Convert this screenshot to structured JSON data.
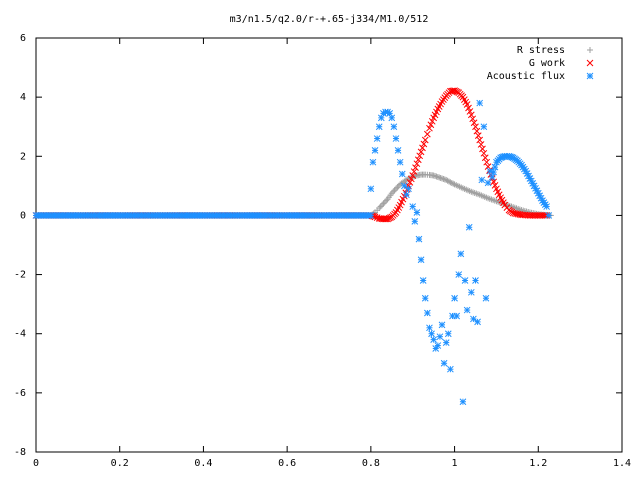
{
  "chart_data": {
    "type": "scatter",
    "title": "m3/n1.5/q2.0/r-+.65-j334/M1.0/512",
    "xlabel": "",
    "ylabel": "",
    "xlim": [
      0,
      1.4
    ],
    "ylim": [
      -8,
      6
    ],
    "x_ticks": [
      "0",
      "0.2",
      "0.4",
      "0.6",
      "0.8",
      "1",
      "1.2",
      "1.4"
    ],
    "y_ticks": [
      "-8",
      "-6",
      "-4",
      "-2",
      "0",
      "2",
      "4",
      "6"
    ],
    "grid": false,
    "legend_position": "top-right",
    "series": [
      {
        "name": "R stress",
        "marker": "plus",
        "color": "#a0a0a0",
        "points": [
          [
            0.0,
            0
          ],
          [
            0.1,
            0
          ],
          [
            0.2,
            0
          ],
          [
            0.3,
            0
          ],
          [
            0.4,
            0
          ],
          [
            0.5,
            0
          ],
          [
            0.6,
            0
          ],
          [
            0.7,
            0
          ],
          [
            0.8,
            0
          ],
          [
            0.81,
            0.1
          ],
          [
            0.82,
            0.25
          ],
          [
            0.83,
            0.4
          ],
          [
            0.84,
            0.55
          ],
          [
            0.85,
            0.75
          ],
          [
            0.86,
            0.9
          ],
          [
            0.87,
            1.05
          ],
          [
            0.88,
            1.15
          ],
          [
            0.89,
            1.25
          ],
          [
            0.9,
            1.3
          ],
          [
            0.91,
            1.35
          ],
          [
            0.92,
            1.38
          ],
          [
            0.93,
            1.38
          ],
          [
            0.94,
            1.37
          ],
          [
            0.95,
            1.35
          ],
          [
            0.96,
            1.3
          ],
          [
            0.97,
            1.25
          ],
          [
            0.98,
            1.2
          ],
          [
            0.99,
            1.12
          ],
          [
            1.0,
            1.05
          ],
          [
            1.02,
            0.92
          ],
          [
            1.04,
            0.8
          ],
          [
            1.06,
            0.7
          ],
          [
            1.08,
            0.58
          ],
          [
            1.1,
            0.48
          ],
          [
            1.12,
            0.38
          ],
          [
            1.14,
            0.28
          ],
          [
            1.16,
            0.18
          ],
          [
            1.18,
            0.1
          ],
          [
            1.2,
            0.04
          ],
          [
            1.22,
            0.01
          ],
          [
            1.23,
            0
          ]
        ]
      },
      {
        "name": "G work",
        "marker": "cross",
        "color": "#ff0000",
        "points": [
          [
            0.0,
            0
          ],
          [
            0.1,
            0
          ],
          [
            0.2,
            0
          ],
          [
            0.3,
            0
          ],
          [
            0.4,
            0
          ],
          [
            0.5,
            0
          ],
          [
            0.6,
            0
          ],
          [
            0.7,
            0
          ],
          [
            0.8,
            0
          ],
          [
            0.81,
            -0.05
          ],
          [
            0.82,
            -0.1
          ],
          [
            0.83,
            -0.12
          ],
          [
            0.84,
            -0.12
          ],
          [
            0.85,
            -0.05
          ],
          [
            0.86,
            0.1
          ],
          [
            0.87,
            0.35
          ],
          [
            0.88,
            0.65
          ],
          [
            0.89,
            1.0
          ],
          [
            0.9,
            1.35
          ],
          [
            0.91,
            1.75
          ],
          [
            0.92,
            2.15
          ],
          [
            0.93,
            2.55
          ],
          [
            0.94,
            2.95
          ],
          [
            0.95,
            3.3
          ],
          [
            0.96,
            3.6
          ],
          [
            0.97,
            3.85
          ],
          [
            0.98,
            4.05
          ],
          [
            0.99,
            4.2
          ],
          [
            1.0,
            4.22
          ],
          [
            1.01,
            4.15
          ],
          [
            1.02,
            4.0
          ],
          [
            1.03,
            3.75
          ],
          [
            1.04,
            3.4
          ],
          [
            1.05,
            3.0
          ],
          [
            1.06,
            2.55
          ],
          [
            1.07,
            2.1
          ],
          [
            1.08,
            1.65
          ],
          [
            1.09,
            1.25
          ],
          [
            1.1,
            0.9
          ],
          [
            1.11,
            0.6
          ],
          [
            1.12,
            0.35
          ],
          [
            1.13,
            0.18
          ],
          [
            1.14,
            0.08
          ],
          [
            1.16,
            0.02
          ],
          [
            1.18,
            0
          ],
          [
            1.2,
            0
          ],
          [
            1.22,
            0
          ]
        ]
      },
      {
        "name": "Acoustic flux",
        "marker": "star",
        "color": "#1e90ff",
        "points": [
          [
            0.0,
            0
          ],
          [
            0.05,
            0
          ],
          [
            0.1,
            0
          ],
          [
            0.15,
            0
          ],
          [
            0.2,
            0
          ],
          [
            0.25,
            0
          ],
          [
            0.3,
            0
          ],
          [
            0.35,
            0
          ],
          [
            0.4,
            0
          ],
          [
            0.45,
            0
          ],
          [
            0.5,
            0
          ],
          [
            0.55,
            0
          ],
          [
            0.6,
            0
          ],
          [
            0.65,
            0
          ],
          [
            0.7,
            0
          ],
          [
            0.75,
            0
          ],
          [
            0.8,
            0
          ],
          [
            0.8,
            0.9
          ],
          [
            0.805,
            1.8
          ],
          [
            0.81,
            2.2
          ],
          [
            0.815,
            2.6
          ],
          [
            0.82,
            3.0
          ],
          [
            0.825,
            3.3
          ],
          [
            0.83,
            3.45
          ],
          [
            0.835,
            3.5
          ],
          [
            0.84,
            3.5
          ],
          [
            0.845,
            3.45
          ],
          [
            0.85,
            3.3
          ],
          [
            0.855,
            3.0
          ],
          [
            0.86,
            2.6
          ],
          [
            0.865,
            2.2
          ],
          [
            0.87,
            1.8
          ],
          [
            0.875,
            1.4
          ],
          [
            0.88,
            1.0
          ],
          [
            0.885,
            0.7
          ],
          [
            0.89,
            0.9
          ],
          [
            0.9,
            0.3
          ],
          [
            0.905,
            -0.2
          ],
          [
            0.91,
            0.1
          ],
          [
            0.915,
            -0.8
          ],
          [
            0.92,
            -1.5
          ],
          [
            0.925,
            -2.2
          ],
          [
            0.93,
            -2.8
          ],
          [
            0.935,
            -3.3
          ],
          [
            0.94,
            -3.8
          ],
          [
            0.945,
            -4.0
          ],
          [
            0.95,
            -4.2
          ],
          [
            0.955,
            -4.5
          ],
          [
            0.96,
            -4.4
          ],
          [
            0.965,
            -4.1
          ],
          [
            0.97,
            -3.7
          ],
          [
            0.975,
            -5.0
          ],
          [
            0.98,
            -4.3
          ],
          [
            0.985,
            -4.0
          ],
          [
            0.99,
            -5.2
          ],
          [
            0.995,
            -3.4
          ],
          [
            1.0,
            -2.8
          ],
          [
            1.005,
            -3.4
          ],
          [
            1.01,
            -2.0
          ],
          [
            1.015,
            -1.3
          ],
          [
            1.02,
            -6.3
          ],
          [
            1.025,
            -2.2
          ],
          [
            1.03,
            -3.2
          ],
          [
            1.035,
            -0.4
          ],
          [
            1.04,
            -2.6
          ],
          [
            1.045,
            -3.5
          ],
          [
            1.05,
            -2.2
          ],
          [
            1.055,
            -3.6
          ],
          [
            1.06,
            3.8
          ],
          [
            1.065,
            1.2
          ],
          [
            1.07,
            3.0
          ],
          [
            1.075,
            -2.8
          ],
          [
            1.08,
            1.1
          ],
          [
            1.085,
            1.5
          ],
          [
            1.09,
            1.3
          ],
          [
            1.1,
            1.8
          ],
          [
            1.11,
            1.95
          ],
          [
            1.12,
            2.0
          ],
          [
            1.13,
            2.0
          ],
          [
            1.14,
            1.95
          ],
          [
            1.15,
            1.85
          ],
          [
            1.16,
            1.7
          ],
          [
            1.17,
            1.5
          ],
          [
            1.18,
            1.25
          ],
          [
            1.19,
            1.0
          ],
          [
            1.2,
            0.75
          ],
          [
            1.21,
            0.5
          ],
          [
            1.22,
            0.3
          ],
          [
            1.225,
            0
          ]
        ]
      }
    ]
  }
}
